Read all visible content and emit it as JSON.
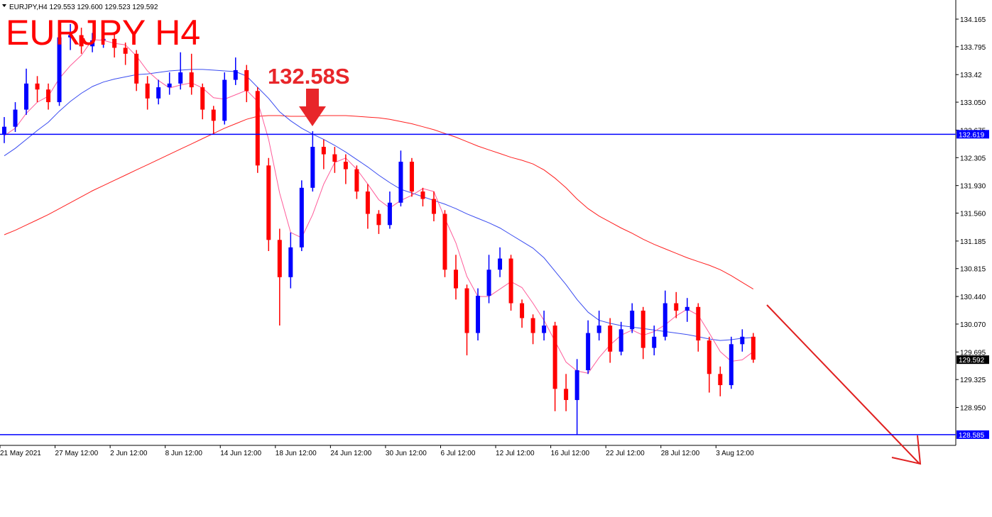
{
  "chart_data": {
    "type": "candlestick",
    "header": "EURJPY,H4  129.553 129.600 129.523 129.592",
    "title": "EURJPY H4",
    "annotation": "132.58S",
    "up_color": "#0000ff",
    "down_color": "#ff0000",
    "open": [
      132.62,
      132.72,
      132.95,
      133.3,
      133.22,
      133.05,
      133.92,
      133.95,
      133.8,
      133.88,
      133.9,
      133.78,
      133.7,
      133.3,
      133.1,
      133.25,
      133.3,
      133.45,
      133.25,
      132.95,
      132.8,
      133.35,
      133.48,
      133.2,
      132.2,
      131.2,
      130.7,
      131.1,
      131.9,
      132.45,
      132.35,
      132.25,
      132.15,
      131.85,
      131.55,
      131.4,
      131.7,
      132.25,
      131.85,
      131.75,
      131.55,
      130.8,
      130.55,
      129.95,
      130.45,
      130.8,
      130.95,
      130.35,
      130.15,
      129.95,
      130.05,
      129.2,
      129.05,
      129.45,
      129.95,
      130.05,
      129.7,
      130.0,
      130.25,
      129.75,
      129.9,
      130.35,
      130.25,
      130.3,
      129.85,
      129.4,
      129.25,
      129.8,
      129.9
    ],
    "high": [
      132.85,
      133.05,
      133.5,
      133.4,
      133.3,
      134.05,
      134.1,
      134.05,
      133.98,
      134.02,
      133.98,
      133.85,
      133.75,
      133.4,
      133.35,
      133.45,
      133.72,
      133.7,
      133.3,
      133.0,
      133.45,
      133.65,
      133.55,
      133.25,
      132.3,
      131.35,
      131.3,
      132.0,
      132.66,
      132.55,
      132.45,
      132.35,
      132.2,
      131.95,
      131.6,
      131.85,
      132.4,
      132.3,
      131.9,
      131.85,
      131.6,
      131.0,
      130.6,
      130.55,
      131.0,
      131.1,
      131.0,
      130.4,
      130.2,
      130.25,
      130.1,
      129.4,
      129.6,
      130.12,
      130.25,
      130.15,
      130.1,
      130.35,
      130.3,
      130.05,
      130.52,
      130.5,
      130.42,
      130.35,
      129.9,
      129.5,
      129.9,
      130.0,
      129.95
    ],
    "low": [
      132.5,
      132.65,
      132.88,
      133.05,
      132.95,
      133.0,
      133.75,
      133.7,
      133.72,
      133.78,
      133.65,
      133.55,
      133.2,
      132.95,
      133.02,
      133.15,
      133.22,
      133.15,
      132.82,
      132.62,
      132.75,
      133.28,
      133.05,
      132.1,
      131.05,
      130.05,
      130.55,
      131.05,
      131.85,
      132.15,
      132.1,
      131.95,
      131.75,
      131.35,
      131.28,
      131.35,
      131.65,
      131.78,
      131.65,
      131.45,
      130.7,
      130.4,
      129.65,
      129.85,
      130.35,
      130.7,
      130.25,
      130.02,
      129.8,
      129.85,
      128.9,
      128.9,
      128.585,
      129.4,
      129.85,
      129.55,
      129.65,
      129.95,
      129.6,
      129.65,
      129.85,
      130.15,
      130.1,
      129.7,
      129.15,
      129.1,
      129.2,
      129.7,
      129.55
    ],
    "close": [
      132.72,
      132.95,
      133.3,
      133.22,
      133.05,
      133.92,
      133.95,
      133.8,
      133.88,
      133.9,
      133.78,
      133.7,
      133.3,
      133.1,
      133.25,
      133.3,
      133.45,
      133.25,
      132.95,
      132.8,
      133.35,
      133.48,
      133.2,
      132.2,
      131.2,
      130.7,
      131.1,
      131.9,
      132.45,
      132.35,
      132.25,
      132.15,
      131.85,
      131.55,
      131.4,
      131.7,
      132.25,
      131.85,
      131.75,
      131.55,
      130.8,
      130.55,
      129.95,
      130.45,
      130.8,
      130.95,
      130.35,
      130.15,
      129.95,
      130.05,
      129.2,
      129.05,
      129.45,
      129.95,
      130.05,
      129.7,
      130.0,
      130.25,
      129.75,
      129.9,
      130.35,
      130.25,
      130.3,
      129.85,
      129.4,
      129.25,
      129.8,
      129.9,
      129.592
    ],
    "series": [
      {
        "color": "#ff2020",
        "values": [
          131.27,
          131.33,
          131.4,
          131.47,
          131.54,
          131.62,
          131.7,
          131.78,
          131.86,
          131.93,
          132.0,
          132.07,
          132.14,
          132.21,
          132.28,
          132.35,
          132.42,
          132.49,
          132.56,
          132.63,
          132.7,
          132.76,
          132.82,
          132.86,
          132.87,
          132.87,
          132.86,
          132.86,
          132.86,
          132.87,
          132.87,
          132.87,
          132.86,
          132.85,
          132.84,
          132.82,
          132.79,
          132.76,
          132.72,
          132.68,
          132.63,
          132.58,
          132.52,
          132.46,
          132.41,
          132.36,
          132.31,
          132.27,
          132.22,
          132.14,
          132.03,
          131.9,
          131.75,
          131.62,
          131.52,
          131.44,
          131.36,
          131.29,
          131.21,
          131.14,
          131.08,
          131.02,
          130.96,
          130.91,
          130.86,
          130.8,
          130.72,
          130.63,
          130.54
        ]
      },
      {
        "color": "#3a4cf0",
        "values": [
          132.33,
          132.43,
          132.55,
          132.67,
          132.78,
          132.93,
          133.06,
          133.17,
          133.26,
          133.32,
          133.36,
          133.39,
          133.42,
          133.43,
          133.45,
          133.47,
          133.48,
          133.49,
          133.49,
          133.48,
          133.47,
          133.46,
          133.4,
          133.25,
          133.1,
          132.92,
          132.8,
          132.7,
          132.62,
          132.55,
          132.47,
          132.38,
          132.28,
          132.18,
          132.07,
          131.97,
          131.88,
          131.83,
          131.78,
          131.73,
          131.68,
          131.62,
          131.55,
          131.49,
          131.43,
          131.36,
          131.27,
          131.18,
          131.09,
          130.96,
          130.78,
          130.6,
          130.4,
          130.23,
          130.12,
          130.08,
          130.05,
          130.03,
          130.01,
          129.99,
          129.97,
          129.95,
          129.93,
          129.9,
          129.87,
          129.85,
          129.86,
          129.88,
          129.89
        ]
      },
      {
        "color": "#ff5c9a",
        "values": [
          132.6,
          132.7,
          132.9,
          133.05,
          133.13,
          133.37,
          133.54,
          133.68,
          133.89,
          133.88,
          133.84,
          133.82,
          133.67,
          133.47,
          133.34,
          133.24,
          133.28,
          133.31,
          133.24,
          133.11,
          133.09,
          133.15,
          133.21,
          133.06,
          132.55,
          131.83,
          131.3,
          131.23,
          131.54,
          131.95,
          132.24,
          132.3,
          132.15,
          131.95,
          131.74,
          131.63,
          131.73,
          131.8,
          131.89,
          131.85,
          131.49,
          131.16,
          130.71,
          130.44,
          130.44,
          130.54,
          130.64,
          130.56,
          130.35,
          130.12,
          129.84,
          129.56,
          129.44,
          129.41,
          129.62,
          129.79,
          129.92,
          129.99,
          129.92,
          129.97,
          130.06,
          130.18,
          130.27,
          130.19,
          129.95,
          129.7,
          129.57,
          129.59,
          129.7
        ]
      }
    ],
    "hlines": [
      {
        "value": 132.619,
        "label": "132.619",
        "color": "#0000ff"
      },
      {
        "value": 128.585,
        "label": "128.585",
        "color": "#0000ff"
      }
    ],
    "price": {
      "value": 129.592,
      "label": "129.592"
    },
    "ylim": [
      128.441,
      134.422
    ],
    "yticks": [
      134.165,
      133.795,
      133.42,
      {
        "value": 133.05,
        "label": "133.050"
      },
      132.675,
      132.305,
      {
        "value": 131.93,
        "label": "131.930"
      },
      {
        "value": 131.56,
        "label": "131.560"
      },
      131.185,
      130.815,
      {
        "value": 130.44,
        "label": "130.440"
      },
      {
        "value": 130.07,
        "label": "130.070"
      },
      129.695,
      129.325,
      {
        "value": 128.95,
        "label": "128.950"
      }
    ],
    "xlim": [
      0,
      86.77
    ],
    "xticks": [
      {
        "value": 0,
        "label": "21 May 2021"
      },
      {
        "value": 5,
        "label": "27 May 12:00"
      },
      {
        "value": 10,
        "label": "2 Jun 12:00"
      },
      {
        "value": 15,
        "label": "8 Jun 12:00"
      },
      {
        "value": 20,
        "label": "14 Jun 12:00"
      },
      {
        "value": 25,
        "label": "18 Jun 12:00"
      },
      {
        "value": 30,
        "label": "24 Jun 12:00"
      },
      {
        "value": 35,
        "label": "30 Jun 12:00"
      },
      {
        "value": 40,
        "label": "6 Jul 12:00"
      },
      {
        "value": 45,
        "label": "12 Jul 12:00"
      },
      {
        "value": 50,
        "label": "16 Jul 12:00"
      },
      {
        "value": 55,
        "label": "22 Jul 12:00"
      },
      {
        "value": 60,
        "label": "28 Jul 12:00"
      },
      {
        "value": 65,
        "label": "3 Aug 12:00"
      }
    ]
  }
}
